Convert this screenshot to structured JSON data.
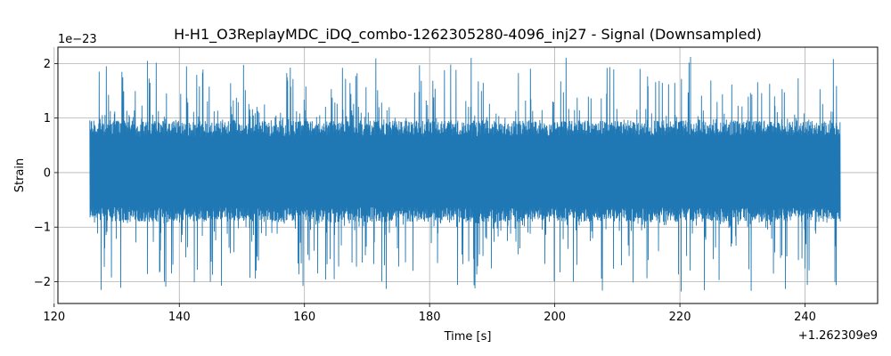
{
  "chart_data": {
    "type": "line",
    "title": "H-H1_O3ReplayMDC_iDQ_combo-1262305280-4096_inj27 - Signal (Downsampled)",
    "xlabel": "Time [s]",
    "ylabel": "Strain",
    "x_offset_label": "+1.262309e9",
    "y_scale_label": "1e−23",
    "xlim": [
      120.6,
      251.6
    ],
    "ylim": [
      -2.4,
      2.3
    ],
    "x_ticks": [
      120,
      140,
      160,
      180,
      200,
      220,
      240
    ],
    "x_tick_labels": [
      "120",
      "140",
      "160",
      "180",
      "200",
      "220",
      "240"
    ],
    "y_ticks": [
      2,
      1,
      0,
      -1,
      -2
    ],
    "y_tick_labels": [
      "2",
      "1",
      "0",
      "−1",
      "−2"
    ],
    "grid": true,
    "series": [
      {
        "color": "#1f77b4",
        "x_start": 125.7,
        "x_end": 245.6,
        "y_bulk_range": [
          -0.9,
          0.95
        ],
        "y_min": -2.18,
        "y_max": 2.12
      }
    ]
  }
}
